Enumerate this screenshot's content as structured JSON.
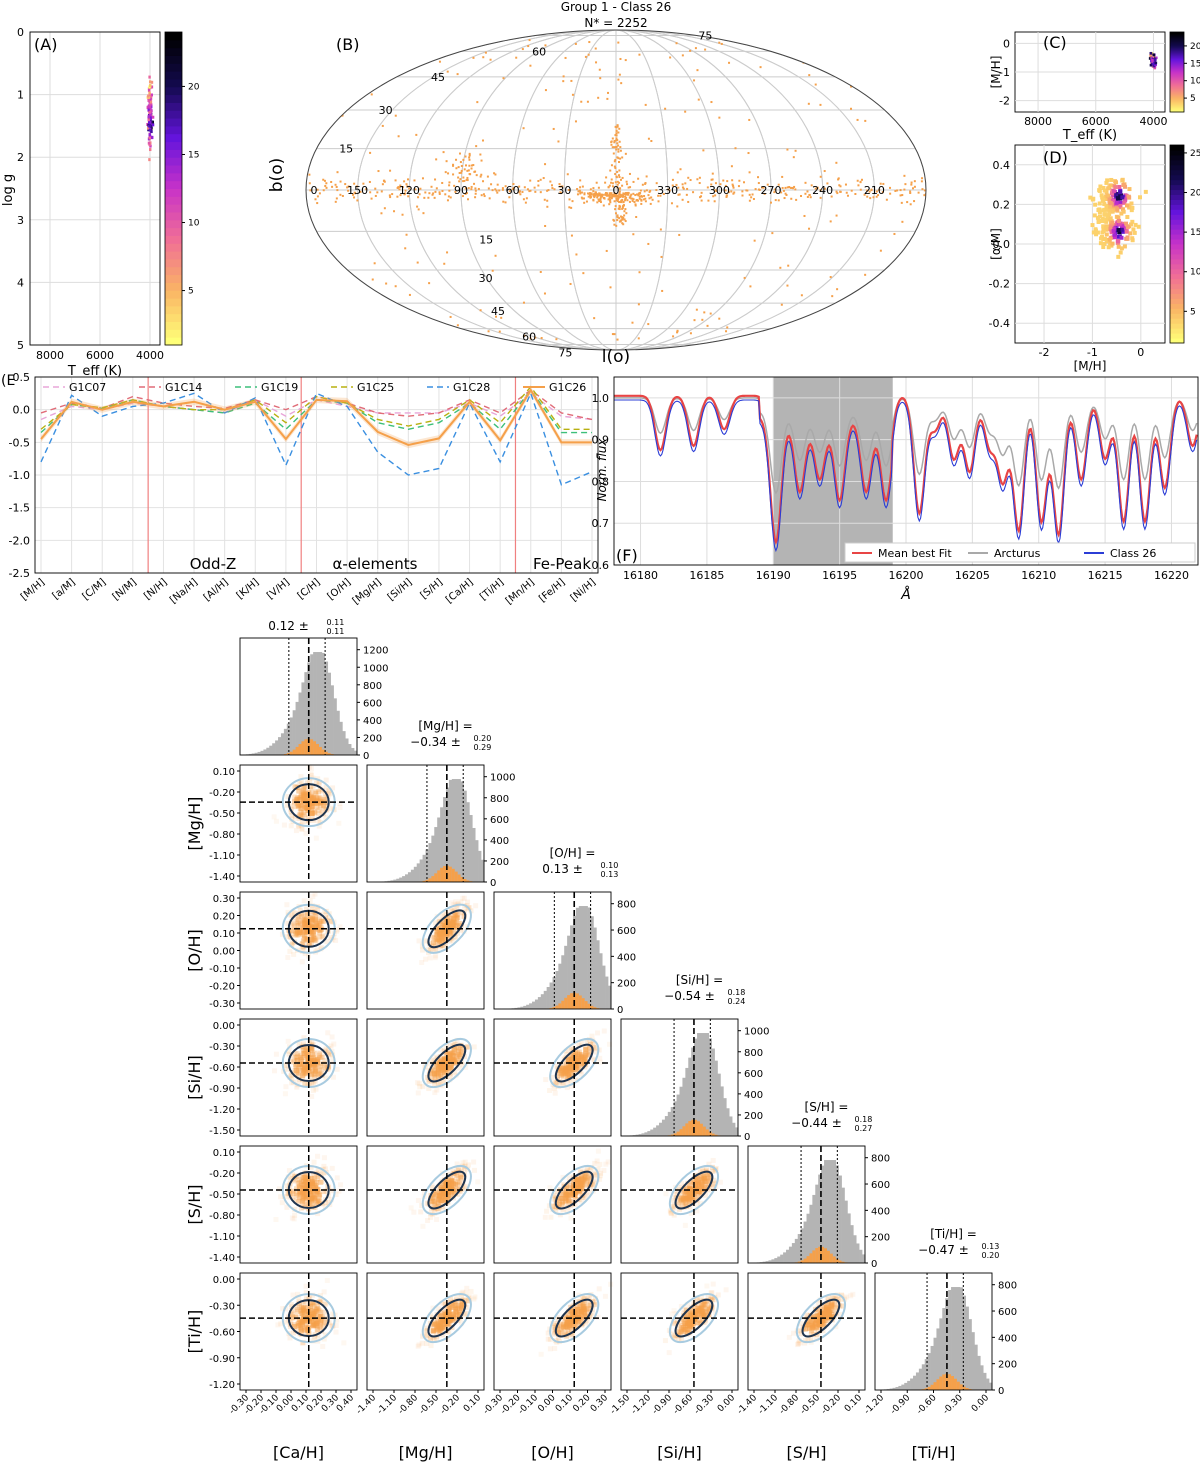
{
  "colors": {
    "orange": "#f5a04a",
    "arcturus": "#a9a9a9",
    "class": "#2b3dd6",
    "best": "#e84545",
    "grey": "#b4b4b4",
    "red_line": "#f08080"
  },
  "chart_data": [
    {
      "panel": "A",
      "type": "heatmap",
      "label": "(A)",
      "xlabel": "T_eff (K)",
      "ylabel": "log g",
      "xlim": [
        8800,
        3600
      ],
      "ylim": [
        5,
        0
      ],
      "xticks": [
        "8000",
        "6000",
        "4000"
      ],
      "yticks": [
        "0",
        "1",
        "2",
        "3",
        "4",
        "5"
      ],
      "colorbar_ticks": [
        "5",
        "10",
        "15",
        "20"
      ],
      "colorbar_range": [
        1,
        24
      ],
      "points": [
        [
          4000,
          1.5,
          23
        ],
        [
          4020,
          1.4,
          18
        ],
        [
          3980,
          1.6,
          15
        ],
        [
          3960,
          1.7,
          8
        ],
        [
          4050,
          1.2,
          9
        ],
        [
          4080,
          1.0,
          5
        ],
        [
          3940,
          1.8,
          4
        ],
        [
          4000,
          1.3,
          12
        ],
        [
          4060,
          1.1,
          6
        ],
        [
          3970,
          1.55,
          20
        ]
      ]
    },
    {
      "panel": "B",
      "type": "scatter",
      "label": "(B)",
      "title": "Group 1 - Class 26",
      "subtitle": "N* = 2252",
      "xlabel": "l(o)",
      "ylabel": "b(o)",
      "lon_labels": [
        "150",
        "120",
        "90",
        "60",
        "30",
        "0",
        "330",
        "300",
        "270",
        "240",
        "210"
      ],
      "lat_labels_top": [
        "75",
        "60",
        "45",
        "30",
        "15",
        "0"
      ],
      "lat_labels_bottom": [
        "75",
        "60",
        "45",
        "30",
        "15"
      ]
    },
    {
      "panel": "C",
      "type": "heatmap",
      "label": "(C)",
      "xlabel": "T_eff (K)",
      "ylabel": "[M/H]",
      "xlim": [
        8800,
        3600
      ],
      "ylim": [
        -2.4,
        0.4
      ],
      "xticks": [
        "8000",
        "6000",
        "4000"
      ],
      "yticks": [
        "0",
        "-1",
        "-2"
      ],
      "colorbar_ticks": [
        "5",
        "10",
        "15",
        "20"
      ],
      "points": [
        [
          4000,
          -0.5,
          22
        ],
        [
          4050,
          -0.6,
          15
        ],
        [
          3950,
          -0.4,
          10
        ],
        [
          4100,
          -0.7,
          6
        ],
        [
          4020,
          -0.8,
          5
        ],
        [
          3980,
          -0.55,
          18
        ]
      ]
    },
    {
      "panel": "D",
      "type": "heatmap",
      "label": "(D)",
      "xlabel": "[M/H]",
      "ylabel": "[α/M]",
      "xlim": [
        -2.6,
        0.5
      ],
      "ylim": [
        -0.5,
        0.5
      ],
      "xticks": [
        "-2",
        "-1",
        "0"
      ],
      "yticks": [
        "0.4",
        "0.2",
        "0.0",
        "-0.2",
        "-0.4"
      ],
      "colorbar_ticks": [
        "5",
        "10",
        "15",
        "20",
        "25"
      ]
    },
    {
      "panel": "E",
      "type": "line",
      "label": "(E",
      "categories": [
        "[M/H]",
        "[a/M]",
        "[C/M]",
        "[N/M]",
        "[N/H]",
        "[Na/H]",
        "[Al/H]",
        "[K/H]",
        "[V/H]",
        "[C/H]",
        "[O/H]",
        "[Mg/H]",
        "[Si/H]",
        "[S/H]",
        "[Ca/H]",
        "[Ti/H]",
        "[Mn/H]",
        "[Fe/H]",
        "[Ni/H]"
      ],
      "ylim": [
        -2.5,
        0.5
      ],
      "yticks": [
        "0.5",
        "0.0",
        "-0.5",
        "-1.0",
        "-1.5",
        "-2.0",
        "-2.5"
      ],
      "region_labels": [
        "Odd-Z",
        "α-elements",
        "Fe-Peak"
      ],
      "series": [
        {
          "name": "G1C07",
          "color": "#e8a5d8",
          "dash": "6,4",
          "values": [
            -0.15,
            0.05,
            0.0,
            0.1,
            0.05,
            0.0,
            -0.05,
            0.15,
            -0.1,
            0.15,
            0.05,
            -0.05,
            -0.05,
            -0.05,
            0.1,
            -0.1,
            0.25,
            -0.1,
            -0.15
          ]
        },
        {
          "name": "G1C14",
          "color": "#e06c78",
          "dash": "6,4",
          "values": [
            -0.05,
            0.1,
            0.02,
            0.2,
            0.1,
            0.05,
            0.02,
            0.15,
            0.0,
            0.2,
            0.1,
            -0.05,
            -0.1,
            -0.05,
            0.15,
            -0.05,
            0.3,
            -0.05,
            -0.15
          ]
        },
        {
          "name": "G1C19",
          "color": "#3cbf7a",
          "dash": "6,4",
          "values": [
            -0.35,
            0.08,
            0.02,
            0.15,
            0.05,
            0.0,
            -0.05,
            0.1,
            -0.3,
            0.15,
            0.1,
            -0.2,
            -0.3,
            -0.2,
            0.1,
            -0.3,
            0.3,
            -0.35,
            -0.35
          ]
        },
        {
          "name": "G1C25",
          "color": "#b8b010",
          "dash": "6,4",
          "values": [
            -0.3,
            0.08,
            0.03,
            0.15,
            0.05,
            0.0,
            0.0,
            0.15,
            -0.2,
            0.2,
            0.1,
            -0.15,
            -0.25,
            -0.15,
            0.15,
            -0.2,
            0.35,
            -0.3,
            -0.3
          ]
        },
        {
          "name": "G1C28",
          "color": "#3a8fe0",
          "dash": "6,4",
          "values": [
            -0.8,
            0.22,
            -0.1,
            0.05,
            0.1,
            0.25,
            -0.05,
            0.18,
            -0.85,
            0.25,
            0.05,
            -0.65,
            -1.0,
            -0.9,
            0.1,
            -0.8,
            0.25,
            -1.15,
            -0.95
          ]
        },
        {
          "name": "G1C26",
          "color": "#f5a04a",
          "dash": "",
          "values": [
            -0.45,
            0.12,
            0.0,
            0.12,
            0.05,
            0.12,
            0.0,
            0.12,
            -0.45,
            0.15,
            0.13,
            -0.34,
            -0.54,
            -0.44,
            0.12,
            -0.47,
            0.3,
            -0.5,
            -0.5
          ]
        }
      ]
    },
    {
      "panel": "F",
      "type": "line",
      "label": "(F)",
      "xlabel": "Å",
      "ylabel": "Norm. flux",
      "xlim": [
        16178,
        16222
      ],
      "ylim": [
        0.6,
        1.05
      ],
      "xticks": [
        "16180",
        "16185",
        "16190",
        "16195",
        "16200",
        "16205",
        "16210",
        "16215",
        "16220"
      ],
      "yticks": [
        "1.0",
        "0.9",
        "0.8",
        "0.7",
        "0.6"
      ],
      "shaded_region": [
        16190,
        16199
      ],
      "legend": [
        "Mean best Fit",
        "Arcturus",
        "Class 26"
      ]
    },
    {
      "panel": "corner",
      "type": "heatmap",
      "params": [
        "[Ca/H]",
        "[Mg/H]",
        "[O/H]",
        "[Si/H]",
        "[S/H]",
        "[Ti/H]"
      ],
      "diag_titles": [
        {
          "label": "",
          "value": "0.12",
          "plus": "0.11",
          "minus": "0.11"
        },
        {
          "label": "[Mg/H] =",
          "value": "−0.34",
          "plus": "0.20",
          "minus": "0.29"
        },
        {
          "label": "[O/H] =",
          "value": "0.13",
          "plus": "0.10",
          "minus": "0.13"
        },
        {
          "label": "[Si/H] =",
          "value": "−0.54",
          "plus": "0.18",
          "minus": "0.24"
        },
        {
          "label": "[S/H] =",
          "value": "−0.44",
          "plus": "0.18",
          "minus": "0.27"
        },
        {
          "label": "[Ti/H] =",
          "value": "−0.47",
          "plus": "0.13",
          "minus": "0.20"
        }
      ],
      "medians": [
        0.12,
        -0.34,
        0.13,
        -0.54,
        -0.44,
        -0.47
      ],
      "x_ticks": [
        [
          "-0.30",
          "-0.20",
          "-0.10",
          "0.00",
          "0.10",
          "0.20",
          "0.30",
          "0.40"
        ],
        [
          "-1.40",
          "-1.10",
          "-0.80",
          "-0.50",
          "-0.20",
          "0.10"
        ],
        [
          "-0.30",
          "-0.20",
          "-0.10",
          "0.00",
          "0.10",
          "0.20",
          "0.30"
        ],
        [
          "-1.50",
          "-1.20",
          "-0.90",
          "-0.60",
          "-0.30",
          "0.00"
        ],
        [
          "-1.40",
          "-1.10",
          "-0.80",
          "-0.50",
          "-0.20",
          "0.10"
        ],
        [
          "-1.20",
          "-0.90",
          "-0.60",
          "-0.30",
          "0.00"
        ]
      ],
      "y_ticks": [
        [],
        [
          "0.10",
          "-0.20",
          "-0.50",
          "-0.80",
          "-1.10",
          "-1.40"
        ],
        [
          "0.30",
          "0.20",
          "0.10",
          "0.00",
          "-0.10",
          "-0.20",
          "-0.30"
        ],
        [
          "0.00",
          "-0.30",
          "-0.60",
          "-0.90",
          "-1.20",
          "-1.50"
        ],
        [
          "0.10",
          "-0.20",
          "-0.50",
          "-0.80",
          "-1.10",
          "-1.40"
        ],
        [
          "0.00",
          "-0.30",
          "-0.60",
          "-0.90",
          "-1.20"
        ]
      ],
      "hist_ticks": [
        [
          "0",
          "200",
          "400",
          "600",
          "800",
          "1000",
          "1200"
        ],
        [
          "0",
          "200",
          "400",
          "600",
          "800",
          "1000"
        ],
        [
          "0",
          "200",
          "400",
          "600",
          "800"
        ],
        [
          "0",
          "200",
          "400",
          "600",
          "800",
          "1000"
        ],
        [
          "0",
          "200",
          "400",
          "600",
          "800"
        ],
        [
          "0",
          "200",
          "400",
          "600",
          "800"
        ]
      ]
    }
  ]
}
